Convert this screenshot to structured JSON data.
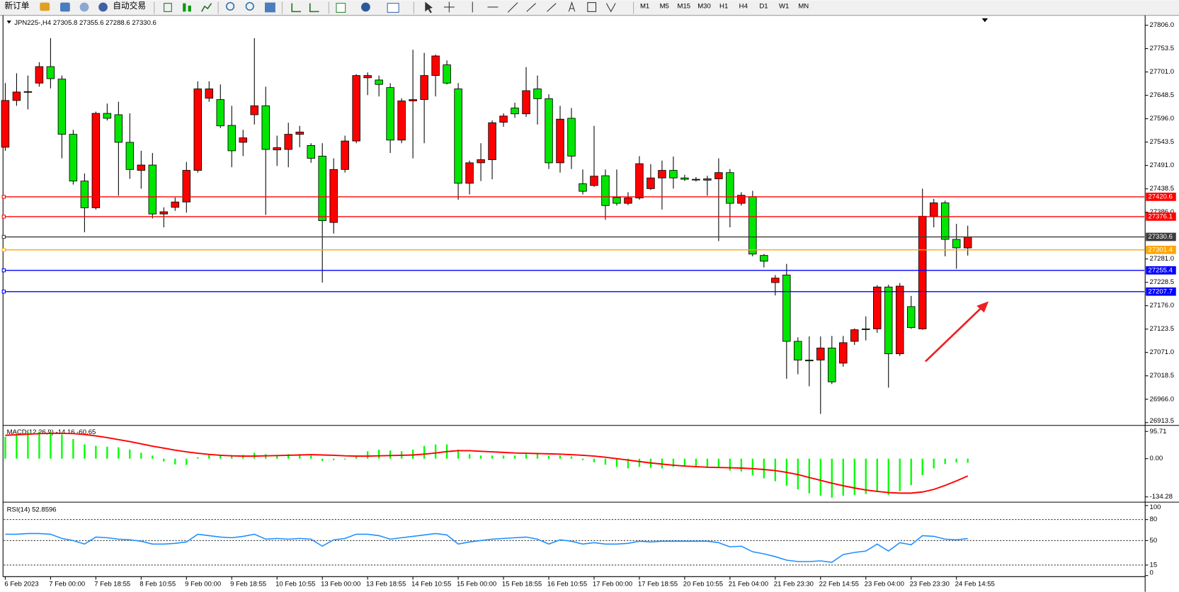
{
  "toolbar": {
    "new_order": "新订单",
    "auto_trading": "自动交易",
    "timeframes": [
      "M1",
      "M5",
      "M15",
      "M30",
      "H1",
      "H4",
      "D1",
      "W1",
      "MN"
    ]
  },
  "chart_data": [
    {
      "type": "candlestick",
      "title": "JPN225-,H4  27305.8 27355.6 27288.6 27330.6",
      "categories": [
        "6 Feb 2023",
        null,
        null,
        null,
        "7 Feb 00:00",
        null,
        null,
        null,
        "7 Feb 18:55",
        null,
        null,
        null,
        "8 Feb 10:55",
        null,
        null,
        null,
        "9 Feb 00:00",
        null,
        null,
        null,
        "9 Feb 18:55",
        null,
        null,
        null,
        "10 Feb 10:55",
        null,
        null,
        null,
        "13 Feb 00:00",
        null,
        null,
        null,
        "13 Feb 18:55",
        null,
        null,
        null,
        "14 Feb 10:55",
        null,
        null,
        null,
        "15 Feb 00:00",
        null,
        null,
        null,
        "15 Feb 18:55",
        null,
        null,
        null,
        "16 Feb 10:55",
        null,
        null,
        null,
        "17 Feb 00:00",
        null,
        null,
        null,
        "17 Feb 18:55",
        null,
        null,
        null,
        "20 Feb 10:55",
        null,
        null,
        null,
        "21 Feb 04:00",
        null,
        null,
        null,
        "21 Feb 23:30",
        null,
        null,
        null,
        "22 Feb 14:55",
        null,
        null,
        null,
        "23 Feb 04:00",
        null,
        null,
        null,
        "23 Feb 23:30",
        null,
        null,
        null,
        "24 Feb 14:55",
        null
      ],
      "open": [
        27532,
        27637,
        27657,
        27676,
        27713,
        27685,
        27561,
        27456,
        27396,
        27608,
        27605,
        27543,
        27480,
        27492,
        27382,
        27397,
        27409,
        27480,
        27642,
        27639,
        27581,
        27543,
        27605,
        27625,
        27526,
        27527,
        27561,
        27536,
        27512,
        27363,
        27482,
        27546,
        27688,
        27683,
        27666,
        27548,
        27636,
        27639,
        27693,
        27717,
        27663,
        27451,
        27497,
        27504,
        27588,
        27620,
        27607,
        27663,
        27641,
        27497,
        27597,
        27450,
        27446,
        27468,
        27419,
        27406,
        27418,
        27439,
        27463,
        27480,
        27463,
        27460,
        27458,
        27461,
        27475,
        27406,
        27421,
        27289,
        27228,
        27245,
        27096,
        27054,
        27054,
        27081,
        27047,
        27096,
        27124,
        27124,
        27218,
        27068,
        27174,
        27124,
        27377,
        27407,
        27325,
        27305.8
      ],
      "high": [
        27676,
        27698,
        27693,
        27723,
        27777,
        27693,
        27571,
        27473,
        27612,
        27630,
        27634,
        27608,
        27524,
        27519,
        27397,
        27419,
        27499,
        27680,
        27680,
        27673,
        27625,
        27571,
        27777,
        27668,
        27558,
        27587,
        27580,
        27541,
        27541,
        27507,
        27558,
        27696,
        27700,
        27693,
        27676,
        27642,
        27751,
        27744,
        27740,
        27727,
        27676,
        27502,
        27541,
        27592,
        27608,
        27632,
        27712,
        27693,
        27651,
        27625,
        27620,
        27482,
        27580,
        27482,
        27482,
        27431,
        27512,
        27494,
        27502,
        27511,
        27470,
        27465,
        27468,
        27507,
        27483,
        27431,
        27434,
        27292,
        27245,
        27270,
        27105,
        27107,
        27107,
        27108,
        27108,
        27125,
        27152,
        27222,
        27223,
        27227,
        27198,
        27439,
        27416,
        27412,
        27360,
        27355.6
      ],
      "low": [
        27524,
        27625,
        27617,
        27668,
        27664,
        27507,
        27448,
        27341,
        27392,
        27592,
        27423,
        27461,
        27439,
        27372,
        27352,
        27389,
        27385,
        27475,
        27634,
        27575,
        27487,
        27512,
        27583,
        27380,
        27490,
        27487,
        27532,
        27497,
        27228,
        27338,
        27475,
        27541,
        27649,
        27646,
        27519,
        27541,
        27507,
        27541,
        27646,
        27673,
        27414,
        27426,
        27456,
        27460,
        27578,
        27598,
        27600,
        27583,
        27483,
        27475,
        27483,
        27426,
        27443,
        27369,
        27401,
        27402,
        27414,
        27436,
        27392,
        27439,
        27456,
        27455,
        27423,
        27321,
        27352,
        27401,
        27287,
        27262,
        27199,
        27012,
        27022,
        26995,
        26933,
        27000,
        27039,
        27088,
        27098,
        27115,
        26992,
        27063,
        27124,
        27122,
        27352,
        27287,
        27259,
        27288.6
      ],
      "close": [
        27637,
        27656,
        27656,
        27713,
        27686,
        27561,
        27456,
        27396,
        27608,
        27597,
        27543,
        27482,
        27492,
        27382,
        27387,
        27409,
        27480,
        27663,
        27663,
        27580,
        27524,
        27553,
        27625,
        27527,
        27531,
        27561,
        27566,
        27507,
        27367,
        27482,
        27546,
        27693,
        27693,
        27673,
        27548,
        27636,
        27639,
        27693,
        27737,
        27676,
        27451,
        27497,
        27504,
        27587,
        27602,
        27607,
        27659,
        27641,
        27497,
        27595,
        27512,
        27433,
        27467,
        27401,
        27406,
        27418,
        27495,
        27463,
        27480,
        27463,
        27460,
        27460,
        27461,
        27475,
        27406,
        27424,
        27292,
        27276,
        27238,
        27096,
        27054,
        27052,
        27081,
        27005,
        27093,
        27122,
        27123,
        27218,
        27068,
        27220,
        27127,
        27377,
        27407,
        27325,
        27306,
        27330.6
      ],
      "up_color": "#ff0000",
      "down_color": "#00e600",
      "ylim": [
        26910.5,
        27824.8
      ],
      "yticks": [
        {
          "value": 27806,
          "label": "27806.0"
        },
        27753.5,
        {
          "value": 27701,
          "label": "27701.0"
        },
        27648.5,
        {
          "value": 27596,
          "label": "27596.0"
        },
        27543.5,
        {
          "value": 27491,
          "label": "27491.0"
        },
        27438.5,
        {
          "value": 27386,
          "label": "27386.0"
        },
        {
          "value": 27281,
          "label": "27281.0"
        },
        27228.5,
        {
          "value": 27176,
          "label": "27176.0"
        },
        27123.5,
        {
          "value": 27071,
          "label": "27071.0"
        },
        27018.5,
        {
          "value": 26966,
          "label": "26966.0"
        },
        26913.5
      ],
      "hlines": [
        {
          "value": 27420.6,
          "color": "#ff0000"
        },
        {
          "value": 27376.1,
          "color": "#ff0000"
        },
        {
          "value": 27330.6,
          "color": "#3c3c3c"
        },
        {
          "value": 27301.4,
          "color": "#ffa500"
        },
        {
          "value": 27255.4,
          "color": "#0000ff"
        },
        {
          "value": 27207.7,
          "color": "#0000ff"
        }
      ]
    },
    {
      "type": "macd",
      "title": "MACD(12,26,9) -14.16 -60.65",
      "histogram": {
        "color": "#00ff00",
        "values": [
          77,
          90,
          95,
          95,
          95,
          85,
          69,
          50,
          45,
          42,
          40,
          32,
          21,
          11,
          -10,
          -20,
          -22,
          5,
          13,
          13,
          13,
          13,
          21,
          16,
          13,
          16,
          16,
          11,
          -8,
          -5,
          -3,
          11,
          26,
          32,
          29,
          26,
          32,
          45,
          50,
          50,
          32,
          16,
          11,
          11,
          11,
          11,
          16,
          18,
          11,
          11,
          8,
          -5,
          -13,
          -21,
          -29,
          -34,
          -29,
          -32,
          -34,
          -29,
          -26,
          -29,
          -29,
          -29,
          -42,
          -45,
          -58,
          -69,
          -79,
          -95,
          -108,
          -122,
          -130,
          -137,
          -130,
          -127,
          -124,
          -114,
          -127,
          -114,
          -93,
          -58,
          -34,
          -19,
          -13,
          -14.16
        ]
      },
      "signal": {
        "color": "#ff0000",
        "values": [
          82,
          84,
          86,
          88,
          89,
          89,
          88,
          85,
          80,
          74,
          67,
          60,
          52,
          44,
          37,
          30,
          24,
          19,
          15,
          12,
          10,
          9,
          9,
          10,
          11,
          12,
          13,
          14,
          13,
          12,
          10,
          9,
          9,
          10,
          11,
          12,
          13,
          16,
          20,
          25,
          28,
          28,
          26,
          24,
          22,
          20,
          19,
          18,
          17,
          16,
          14,
          12,
          9,
          5,
          0,
          -5,
          -10,
          -15,
          -19,
          -23,
          -26,
          -28,
          -30,
          -31,
          -32,
          -33,
          -35,
          -38,
          -42,
          -48,
          -56,
          -66,
          -76,
          -86,
          -95,
          -103,
          -110,
          -115,
          -119,
          -121,
          -121,
          -117,
          -108,
          -94,
          -78,
          -60.65
        ]
      },
      "ylim": [
        -147.5,
        111.57
      ],
      "yticks": [
        95.71,
        {
          "value": 0,
          "label": "0.00"
        },
        -134.28
      ]
    },
    {
      "type": "line",
      "title": "RSI(14) 52.8596",
      "color": "#1e90ff",
      "values": [
        59,
        59,
        60,
        60,
        59,
        53,
        50,
        45,
        55,
        54,
        52,
        51,
        49,
        45,
        45,
        46,
        48,
        59,
        57,
        55,
        54,
        56,
        59,
        52,
        53,
        52,
        53,
        52,
        42,
        51,
        53,
        59,
        59,
        57,
        52,
        54,
        56,
        58,
        60,
        58,
        45,
        48,
        50,
        52,
        53,
        54,
        55,
        52,
        45,
        51,
        49,
        45,
        47,
        45,
        45,
        46,
        49,
        48,
        49,
        49,
        49,
        49,
        49,
        47,
        41,
        42,
        34,
        31,
        27,
        22,
        20,
        20,
        21,
        19,
        30,
        33,
        35,
        45,
        35,
        47,
        44,
        57,
        56,
        52,
        51,
        52.8596
      ],
      "ylim": [
        -0.5,
        101.6
      ],
      "yticks": [
        100,
        80,
        50,
        15,
        0
      ],
      "levels": [
        80,
        50,
        15
      ]
    }
  ]
}
